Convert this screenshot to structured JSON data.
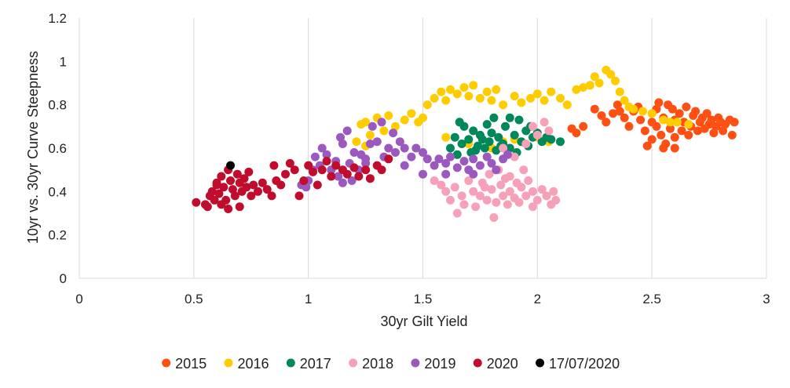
{
  "chart_data": {
    "type": "scatter",
    "xlabel": "30yr Gilt Yield",
    "ylabel": "10yr vs. 30yr Curve Steepness",
    "xlim": [
      0,
      3
    ],
    "ylim": [
      0,
      1.2
    ],
    "x_ticks": [
      "0",
      "0.5",
      "1",
      "1.5",
      "2",
      "2.5",
      "3"
    ],
    "y_ticks": [
      "0",
      "0.2",
      "0.4",
      "0.6",
      "0.8",
      "1",
      "1.2"
    ],
    "grid": "vertical",
    "legend_position": "bottom",
    "series": [
      {
        "name": "2015",
        "color": "#FF5014",
        "points": [
          [
            2.25,
            0.78
          ],
          [
            2.28,
            0.75
          ],
          [
            2.3,
            0.72
          ],
          [
            2.33,
            0.76
          ],
          [
            2.35,
            0.8
          ],
          [
            2.38,
            0.74
          ],
          [
            2.4,
            0.7
          ],
          [
            2.42,
            0.77
          ],
          [
            2.45,
            0.73
          ],
          [
            2.47,
            0.68
          ],
          [
            2.5,
            0.72
          ],
          [
            2.5,
            0.64
          ],
          [
            2.52,
            0.7
          ],
          [
            2.52,
            0.78
          ],
          [
            2.54,
            0.66
          ],
          [
            2.55,
            0.74
          ],
          [
            2.56,
            0.62
          ],
          [
            2.57,
            0.8
          ],
          [
            2.58,
            0.69
          ],
          [
            2.6,
            0.73
          ],
          [
            2.6,
            0.65
          ],
          [
            2.62,
            0.76
          ],
          [
            2.63,
            0.68
          ],
          [
            2.64,
            0.72
          ],
          [
            2.65,
            0.79
          ],
          [
            2.66,
            0.66
          ],
          [
            2.67,
            0.7
          ],
          [
            2.68,
            0.75
          ],
          [
            2.7,
            0.68
          ],
          [
            2.71,
            0.72
          ],
          [
            2.72,
            0.74
          ],
          [
            2.73,
            0.69
          ],
          [
            2.75,
            0.71
          ],
          [
            2.76,
            0.73
          ],
          [
            2.77,
            0.67
          ],
          [
            2.78,
            0.7
          ],
          [
            2.8,
            0.72
          ],
          [
            2.81,
            0.68
          ],
          [
            2.82,
            0.71
          ],
          [
            2.84,
            0.73
          ],
          [
            2.85,
            0.66
          ],
          [
            2.86,
            0.72
          ],
          [
            2.48,
            0.61
          ],
          [
            2.55,
            0.6
          ],
          [
            2.6,
            0.6
          ],
          [
            2.36,
            0.77
          ],
          [
            2.2,
            0.7
          ],
          [
            2.15,
            0.69
          ],
          [
            2.17,
            0.67
          ],
          [
            2.44,
            0.79
          ],
          [
            2.53,
            0.81
          ],
          [
            2.59,
            0.78
          ],
          [
            2.69,
            0.77
          ],
          [
            2.74,
            0.76
          ],
          [
            2.79,
            0.74
          ]
        ]
      },
      {
        "name": "2016",
        "color": "#FFCC00",
        "points": [
          [
            1.21,
            0.63
          ],
          [
            1.23,
            0.71
          ],
          [
            1.25,
            0.72
          ],
          [
            1.27,
            0.66
          ],
          [
            1.3,
            0.74
          ],
          [
            1.33,
            0.68
          ],
          [
            1.35,
            0.75
          ],
          [
            1.38,
            0.7
          ],
          [
            1.42,
            0.73
          ],
          [
            1.45,
            0.76
          ],
          [
            1.48,
            0.72
          ],
          [
            1.5,
            0.74
          ],
          [
            1.52,
            0.8
          ],
          [
            1.55,
            0.83
          ],
          [
            1.58,
            0.86
          ],
          [
            1.6,
            0.82
          ],
          [
            1.62,
            0.87
          ],
          [
            1.65,
            0.85
          ],
          [
            1.68,
            0.88
          ],
          [
            1.7,
            0.84
          ],
          [
            1.72,
            0.89
          ],
          [
            1.75,
            0.83
          ],
          [
            1.78,
            0.86
          ],
          [
            1.8,
            0.82
          ],
          [
            1.82,
            0.87
          ],
          [
            1.85,
            0.8
          ],
          [
            1.9,
            0.84
          ],
          [
            1.93,
            0.81
          ],
          [
            1.97,
            0.83
          ],
          [
            2.0,
            0.85
          ],
          [
            2.03,
            0.82
          ],
          [
            2.06,
            0.86
          ],
          [
            2.1,
            0.83
          ],
          [
            2.13,
            0.8
          ],
          [
            2.17,
            0.87
          ],
          [
            2.2,
            0.88
          ],
          [
            2.23,
            0.89
          ],
          [
            2.25,
            0.93
          ],
          [
            2.27,
            0.9
          ],
          [
            2.3,
            0.96
          ],
          [
            2.32,
            0.94
          ],
          [
            2.34,
            0.91
          ],
          [
            2.36,
            0.86
          ],
          [
            2.38,
            0.82
          ],
          [
            2.4,
            0.79
          ],
          [
            2.42,
            0.78
          ],
          [
            2.46,
            0.77
          ],
          [
            2.5,
            0.76
          ],
          [
            2.55,
            0.73
          ],
          [
            2.58,
            0.72
          ],
          [
            2.61,
            0.72
          ],
          [
            2.66,
            0.71
          ],
          [
            1.25,
            0.61
          ],
          [
            1.3,
            0.63
          ],
          [
            1.6,
            0.65
          ],
          [
            1.7,
            0.62
          ],
          [
            1.8,
            0.6
          ],
          [
            1.9,
            0.64
          ],
          [
            2.0,
            0.65
          ],
          [
            2.05,
            0.63
          ],
          [
            1.85,
            0.63
          ]
        ]
      },
      {
        "name": "2017",
        "color": "#00875A",
        "points": [
          [
            1.62,
            0.6
          ],
          [
            1.64,
            0.65
          ],
          [
            1.65,
            0.57
          ],
          [
            1.67,
            0.62
          ],
          [
            1.68,
            0.7
          ],
          [
            1.7,
            0.64
          ],
          [
            1.71,
            0.58
          ],
          [
            1.72,
            0.68
          ],
          [
            1.74,
            0.61
          ],
          [
            1.75,
            0.66
          ],
          [
            1.77,
            0.6
          ],
          [
            1.78,
            0.71
          ],
          [
            1.79,
            0.63
          ],
          [
            1.8,
            0.67
          ],
          [
            1.82,
            0.59
          ],
          [
            1.83,
            0.65
          ],
          [
            1.85,
            0.62
          ],
          [
            1.86,
            0.7
          ],
          [
            1.88,
            0.6
          ],
          [
            1.9,
            0.66
          ],
          [
            1.92,
            0.73
          ],
          [
            1.93,
            0.63
          ],
          [
            1.95,
            0.68
          ],
          [
            1.96,
            0.61
          ],
          [
            1.98,
            0.65
          ],
          [
            2.0,
            0.67
          ],
          [
            2.02,
            0.63
          ],
          [
            2.04,
            0.65
          ],
          [
            2.06,
            0.64
          ],
          [
            2.1,
            0.63
          ],
          [
            1.81,
            0.74
          ],
          [
            1.88,
            0.74
          ],
          [
            1.66,
            0.72
          ],
          [
            1.73,
            0.59
          ],
          [
            1.76,
            0.64
          ],
          [
            1.84,
            0.61
          ],
          [
            1.91,
            0.58
          ],
          [
            1.97,
            0.7
          ]
        ]
      },
      {
        "name": "2018",
        "color": "#F7A1B9",
        "points": [
          [
            1.55,
            0.45
          ],
          [
            1.58,
            0.43
          ],
          [
            1.6,
            0.4
          ],
          [
            1.62,
            0.36
          ],
          [
            1.64,
            0.42
          ],
          [
            1.65,
            0.3
          ],
          [
            1.67,
            0.38
          ],
          [
            1.68,
            0.34
          ],
          [
            1.7,
            0.45
          ],
          [
            1.72,
            0.4
          ],
          [
            1.73,
            0.33
          ],
          [
            1.75,
            0.38
          ],
          [
            1.76,
            0.44
          ],
          [
            1.78,
            0.36
          ],
          [
            1.79,
            0.48
          ],
          [
            1.8,
            0.41
          ],
          [
            1.81,
            0.28
          ],
          [
            1.82,
            0.35
          ],
          [
            1.83,
            0.5
          ],
          [
            1.84,
            0.43
          ],
          [
            1.85,
            0.38
          ],
          [
            1.86,
            0.46
          ],
          [
            1.87,
            0.34
          ],
          [
            1.88,
            0.4
          ],
          [
            1.9,
            0.37
          ],
          [
            1.91,
            0.44
          ],
          [
            1.92,
            0.35
          ],
          [
            1.93,
            0.42
          ],
          [
            1.95,
            0.38
          ],
          [
            1.96,
            0.45
          ],
          [
            1.98,
            0.33
          ],
          [
            1.98,
            0.4
          ],
          [
            2.0,
            0.36
          ],
          [
            2.02,
            0.41
          ],
          [
            2.04,
            0.38
          ],
          [
            2.06,
            0.34
          ],
          [
            2.07,
            0.4
          ],
          [
            2.08,
            0.36
          ],
          [
            1.85,
            0.6
          ],
          [
            1.9,
            0.56
          ],
          [
            1.95,
            0.62
          ],
          [
            1.98,
            0.7
          ],
          [
            2.0,
            0.66
          ],
          [
            2.03,
            0.72
          ],
          [
            2.05,
            0.68
          ],
          [
            1.88,
            0.47
          ],
          [
            1.94,
            0.5
          ],
          [
            1.77,
            0.42
          ]
        ]
      },
      {
        "name": "2019",
        "color": "#9B59C0",
        "points": [
          [
            0.97,
            0.43
          ],
          [
            1.0,
            0.45
          ],
          [
            1.02,
            0.5
          ],
          [
            1.05,
            0.52
          ],
          [
            1.06,
            0.6
          ],
          [
            1.08,
            0.57
          ],
          [
            1.1,
            0.5
          ],
          [
            1.12,
            0.54
          ],
          [
            1.13,
            0.47
          ],
          [
            1.14,
            0.65
          ],
          [
            1.15,
            0.62
          ],
          [
            1.17,
            0.68
          ],
          [
            1.18,
            0.53
          ],
          [
            1.19,
            0.45
          ],
          [
            1.2,
            0.58
          ],
          [
            1.22,
            0.5
          ],
          [
            1.23,
            0.57
          ],
          [
            1.25,
            0.53
          ],
          [
            1.27,
            0.62
          ],
          [
            1.28,
            0.7
          ],
          [
            1.3,
            0.63
          ],
          [
            1.32,
            0.72
          ],
          [
            1.33,
            0.56
          ],
          [
            1.35,
            0.6
          ],
          [
            1.37,
            0.67
          ],
          [
            1.38,
            0.58
          ],
          [
            1.4,
            0.63
          ],
          [
            1.42,
            0.6
          ],
          [
            1.45,
            0.56
          ],
          [
            1.47,
            0.6
          ],
          [
            1.5,
            0.58
          ],
          [
            1.52,
            0.55
          ],
          [
            1.55,
            0.52
          ],
          [
            1.57,
            0.55
          ],
          [
            1.6,
            0.53
          ],
          [
            1.62,
            0.56
          ],
          [
            1.65,
            0.51
          ],
          [
            1.68,
            0.54
          ],
          [
            1.7,
            0.5
          ],
          [
            1.72,
            0.55
          ],
          [
            1.75,
            0.52
          ],
          [
            1.78,
            0.56
          ],
          [
            1.8,
            0.53
          ],
          [
            1.82,
            0.5
          ],
          [
            1.85,
            0.55
          ],
          [
            1.87,
            0.57
          ],
          [
            1.6,
            0.48
          ],
          [
            1.72,
            0.48
          ],
          [
            1.5,
            0.48
          ],
          [
            1.42,
            0.52
          ],
          [
            1.25,
            0.55
          ],
          [
            1.15,
            0.44
          ],
          [
            0.99,
            0.42
          ],
          [
            1.03,
            0.56
          ]
        ]
      },
      {
        "name": "2020",
        "color": "#C00D2D",
        "points": [
          [
            0.51,
            0.35
          ],
          [
            0.55,
            0.34
          ],
          [
            0.56,
            0.33
          ],
          [
            0.57,
            0.38
          ],
          [
            0.58,
            0.4
          ],
          [
            0.59,
            0.36
          ],
          [
            0.6,
            0.43
          ],
          [
            0.61,
            0.39
          ],
          [
            0.62,
            0.47
          ],
          [
            0.63,
            0.42
          ],
          [
            0.64,
            0.36
          ],
          [
            0.65,
            0.5
          ],
          [
            0.66,
            0.45
          ],
          [
            0.67,
            0.41
          ],
          [
            0.68,
            0.38
          ],
          [
            0.69,
            0.48
          ],
          [
            0.7,
            0.44
          ],
          [
            0.71,
            0.4
          ],
          [
            0.72,
            0.46
          ],
          [
            0.73,
            0.42
          ],
          [
            0.75,
            0.38
          ],
          [
            0.76,
            0.43
          ],
          [
            0.78,
            0.4
          ],
          [
            0.8,
            0.44
          ],
          [
            0.82,
            0.41
          ],
          [
            0.84,
            0.38
          ],
          [
            0.85,
            0.52
          ],
          [
            0.86,
            0.45
          ],
          [
            0.88,
            0.43
          ],
          [
            0.9,
            0.48
          ],
          [
            0.92,
            0.53
          ],
          [
            0.94,
            0.5
          ],
          [
            0.96,
            0.38
          ],
          [
            0.98,
            0.45
          ],
          [
            1.0,
            0.52
          ],
          [
            1.02,
            0.49
          ],
          [
            1.04,
            0.43
          ],
          [
            1.06,
            0.5
          ],
          [
            1.08,
            0.54
          ],
          [
            1.1,
            0.47
          ],
          [
            1.12,
            0.52
          ],
          [
            1.15,
            0.5
          ],
          [
            1.17,
            0.48
          ],
          [
            1.2,
            0.51
          ],
          [
            1.22,
            0.47
          ],
          [
            1.25,
            0.5
          ],
          [
            1.27,
            0.46
          ],
          [
            1.3,
            0.52
          ],
          [
            1.32,
            0.5
          ],
          [
            1.35,
            0.55
          ],
          [
            0.65,
            0.32
          ],
          [
            0.7,
            0.33
          ],
          [
            0.6,
            0.44
          ],
          [
            0.74,
            0.49
          ],
          [
            0.62,
            0.34
          ]
        ]
      },
      {
        "name": "17/07/2020",
        "color": "#000000",
        "points": [
          [
            0.66,
            0.52
          ]
        ]
      }
    ]
  }
}
